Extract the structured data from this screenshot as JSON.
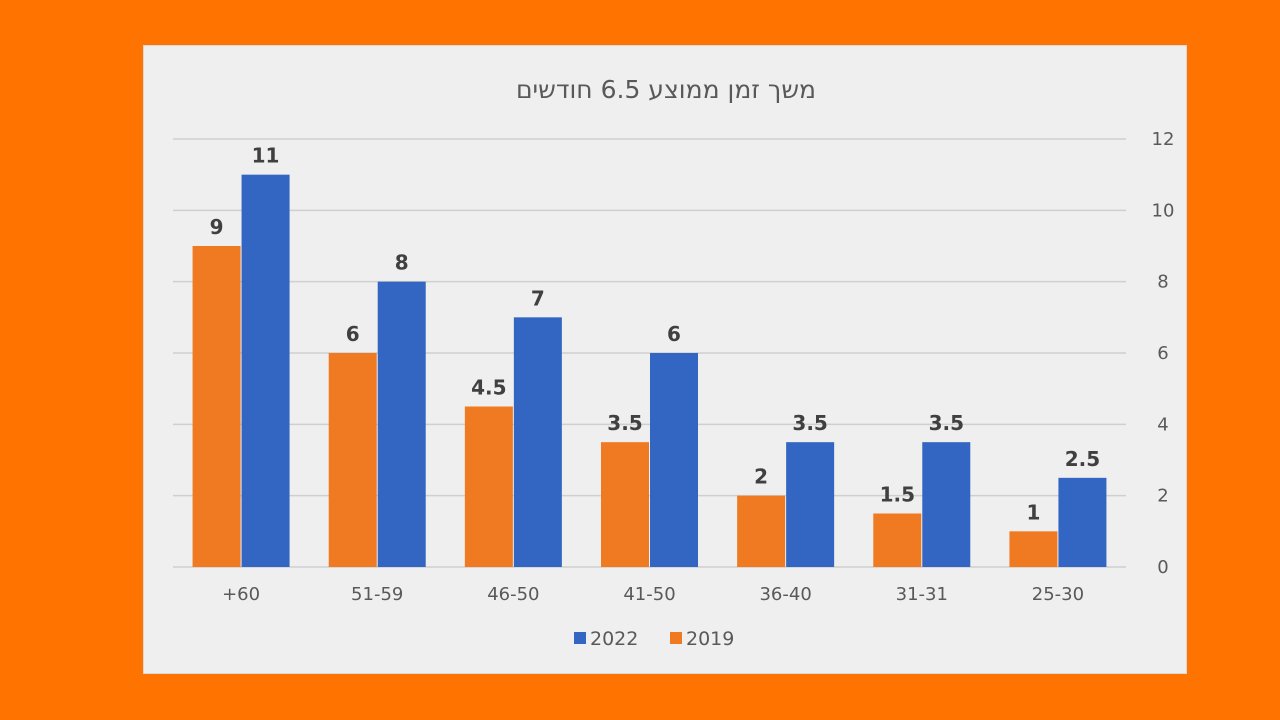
{
  "chart_data": {
    "type": "bar",
    "title": "משך זמן ממוצע 6.5 חודשים",
    "categories": [
      "+60",
      "51-59",
      "46-50",
      "41-50",
      "36-40",
      "31-31",
      "25-30"
    ],
    "series": [
      {
        "name": "2019",
        "values": [
          9,
          6,
          4.5,
          3.5,
          2,
          1.5,
          1
        ],
        "color": "#f07a22"
      },
      {
        "name": "2022",
        "values": [
          11,
          8,
          7,
          6,
          3.5,
          3.5,
          2.5
        ],
        "color": "#3266c2"
      }
    ],
    "ylim": [
      0,
      12
    ],
    "yticks": [
      0,
      2,
      4,
      6,
      8,
      10,
      12
    ],
    "y_axis_side": "right",
    "grid": true,
    "legend_position": "bottom",
    "legend_order": [
      "2022",
      "2019"
    ],
    "data_labels": true,
    "xlabel": "",
    "ylabel": ""
  },
  "colors": {
    "background": "#ff7300",
    "panel": "#efefef",
    "gridline": "#cfcfcf"
  }
}
